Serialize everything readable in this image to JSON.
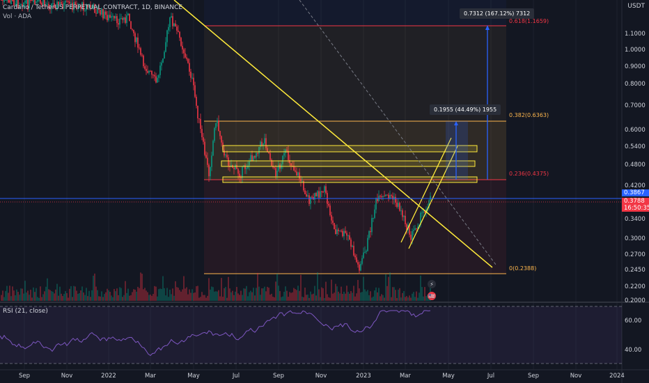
{
  "header": {
    "symbol_line": "Cardano / TetherUS PERPETUAL CONTRACT, 1D, BINANCE",
    "volume_line": "Vol · ADA"
  },
  "price_axis": {
    "currency": "USDT",
    "ticks": [
      "1.1000",
      "1.0000",
      "0.9000",
      "0.8000",
      "0.7000",
      "0.6000",
      "0.5400",
      "0.4800",
      "0.4200",
      "0.3400",
      "0.3000",
      "0.2700",
      "0.2450",
      "0.2200",
      "0.2000"
    ]
  },
  "price_tags": {
    "blue_line": "0.3867",
    "last_price": "0.3788",
    "countdown": "16:50:35"
  },
  "time_axis": {
    "ticks": [
      "Sep",
      "Nov",
      "2022",
      "Mar",
      "May",
      "Jul",
      "Sep",
      "Nov",
      "2023",
      "Mar",
      "May",
      "Jul",
      "Sep",
      "Nov",
      "2024"
    ]
  },
  "fib_levels": [
    {
      "label": "0.618(1.1659)",
      "color": "#f23645"
    },
    {
      "label": "0.382(0.6363)",
      "color": "#ffb74d"
    },
    {
      "label": "0.236(0.4375)",
      "color": "#f23645"
    },
    {
      "label": "0(0.2388)",
      "color": "#ffb74d"
    }
  ],
  "measurements": {
    "large": "0.7312 (167.12%) 7312",
    "small": "0.1955 (44.49%) 1955"
  },
  "rsi": {
    "title": "RSI (21, close)",
    "ticks": [
      "60.00",
      "40.00"
    ]
  },
  "events": {
    "lightning": "⚡",
    "flag": "🇺🇸"
  },
  "colors": {
    "background": "#131722",
    "up": "#089981",
    "down": "#f23645",
    "trendline": "#ffeb3b",
    "measure": "#2962ff",
    "rsi_line": "#7e57c2",
    "price_line": "#2962ff"
  }
}
